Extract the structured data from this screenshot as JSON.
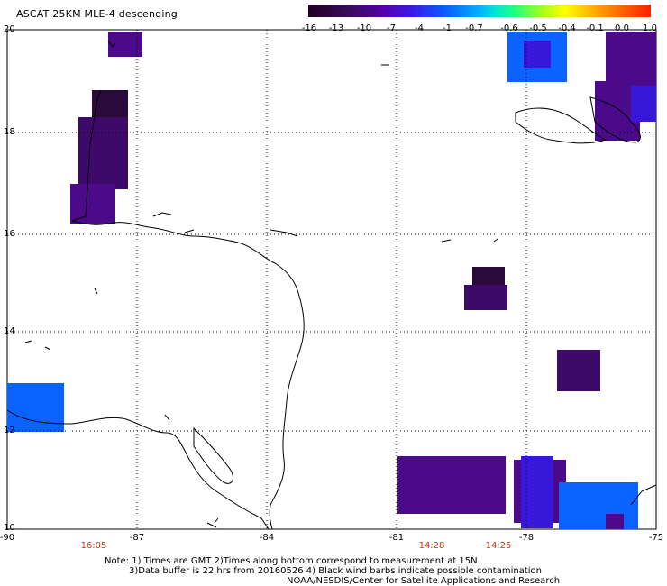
{
  "title": "ASCAT 25KM MLE-4 descending",
  "colorbar": {
    "ticks": [
      "-16",
      "-13",
      "-10",
      "-7",
      "-4",
      "-1",
      "-0.7",
      "-0.6",
      "-0.5",
      "-0.4",
      "-0.1",
      "0.0",
      "1.0"
    ]
  },
  "axes": {
    "lon_ticks": [
      "-90",
      "-87",
      "-84",
      "-81",
      "-78",
      "-75"
    ],
    "lat_ticks": [
      "20",
      "18",
      "16",
      "14",
      "12",
      "10"
    ]
  },
  "time_labels": [
    "16:05",
    "14:28",
    "14:25"
  ],
  "notes": {
    "line1": "Note: 1) Times are GMT 2)Times along bottom correspond to measurement at 15N",
    "line2": "3)Data buffer is 22 hrs from 20160526 4) Black wind barbs indicate possible contamination",
    "line3": "NOAA/NESDIS/Center for Satellite Applications and Research"
  },
  "colors": {
    "dark_purple": "#2a0a3a",
    "purple": "#4a0a8a",
    "violet_blue": "#3818d8",
    "blue": "#0a62ff",
    "grid": "#000000"
  }
}
